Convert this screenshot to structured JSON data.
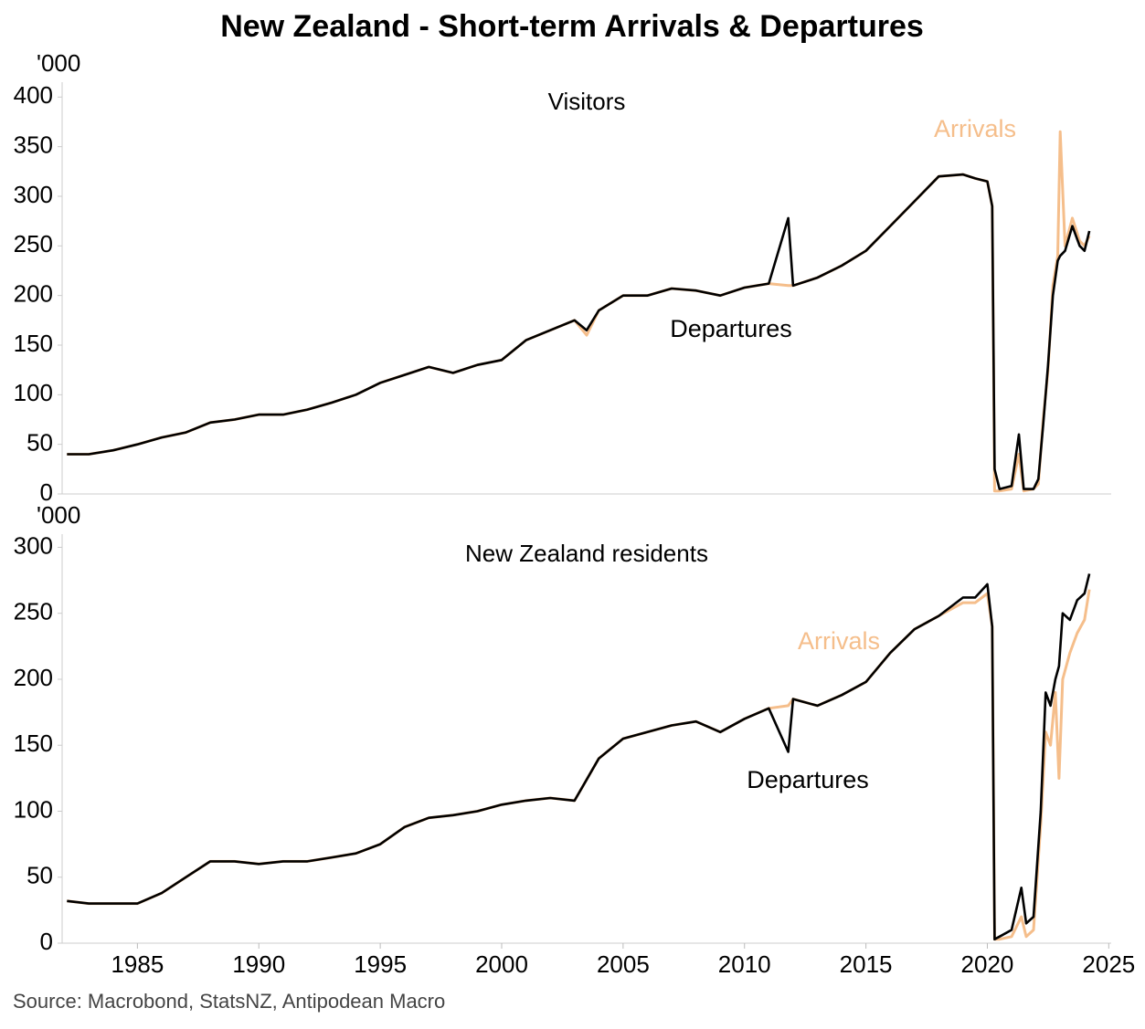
{
  "title": "New Zealand - Short-term Arrivals & Departures",
  "source": "Source: Macrobond, StatsNZ, Antipodean Macro",
  "chart_data": [
    {
      "type": "line",
      "subtitle": "Visitors",
      "y_label": "'000",
      "annotations": [
        "Arrivals",
        "Departures"
      ],
      "xlim": [
        1981.9,
        2025.1
      ],
      "ylim": [
        0,
        415
      ],
      "yticks": [
        0,
        50,
        100,
        150,
        200,
        250,
        300,
        350,
        400
      ],
      "x": [
        1982.1,
        1983,
        1984,
        1985,
        1986,
        1987,
        1988,
        1989,
        1990,
        1991,
        1992,
        1993,
        1994,
        1995,
        1996,
        1997,
        1998,
        1999,
        2000,
        2001,
        2002,
        2003,
        2003.5,
        2004,
        2005,
        2006,
        2007,
        2008,
        2009,
        2010,
        2011,
        2011.8,
        2012,
        2013,
        2014,
        2015,
        2016,
        2017,
        2018,
        2019,
        2019.5,
        2020.0,
        2020.2,
        2020.3,
        2020.5,
        2021.0,
        2021.3,
        2021.5,
        2021.9,
        2022.1,
        2022.3,
        2022.5,
        2022.7,
        2022.9,
        2023.0,
        2023.2,
        2023.5,
        2023.8,
        2024.0,
        2024.2
      ],
      "series": [
        {
          "name": "Arrivals",
          "color": "#f5be8b",
          "values": [
            40,
            40,
            44,
            50,
            57,
            62,
            72,
            75,
            80,
            80,
            85,
            92,
            100,
            112,
            120,
            128,
            122,
            130,
            135,
            155,
            165,
            175,
            160,
            185,
            200,
            200,
            207,
            205,
            200,
            208,
            212,
            210,
            210,
            218,
            230,
            245,
            270,
            295,
            320,
            322,
            318,
            315,
            290,
            3,
            3,
            5,
            40,
            3,
            5,
            10,
            75,
            125,
            210,
            240,
            365,
            250,
            278,
            255,
            250,
            260
          ]
        },
        {
          "name": "Departures",
          "color": "#000000",
          "values": [
            40,
            40,
            44,
            50,
            57,
            62,
            72,
            75,
            80,
            80,
            85,
            92,
            100,
            112,
            120,
            128,
            122,
            130,
            135,
            155,
            165,
            175,
            165,
            185,
            200,
            200,
            207,
            205,
            200,
            208,
            212,
            278,
            210,
            218,
            230,
            245,
            270,
            295,
            320,
            322,
            318,
            315,
            290,
            25,
            5,
            8,
            60,
            5,
            5,
            15,
            70,
            130,
            200,
            235,
            240,
            245,
            270,
            250,
            245,
            265
          ]
        }
      ]
    },
    {
      "type": "line",
      "subtitle": "New Zealand residents",
      "y_label": "'000",
      "annotations": [
        "Arrivals",
        "Departures"
      ],
      "xlim": [
        1981.9,
        2025.1
      ],
      "ylim": [
        0,
        310
      ],
      "yticks": [
        0,
        50,
        100,
        150,
        200,
        250,
        300
      ],
      "xticks": [
        1985,
        1990,
        1995,
        2000,
        2005,
        2010,
        2015,
        2020,
        2025
      ],
      "x": [
        1982.1,
        1983,
        1984,
        1985,
        1986,
        1987,
        1988,
        1989,
        1990,
        1991,
        1992,
        1993,
        1994,
        1995,
        1996,
        1997,
        1998,
        1999,
        2000,
        2001,
        2002,
        2003,
        2004,
        2005,
        2006,
        2007,
        2008,
        2009,
        2010,
        2011,
        2011.8,
        2012,
        2013,
        2014,
        2015,
        2016,
        2017,
        2018,
        2019,
        2019.5,
        2020.0,
        2020.2,
        2020.3,
        2020.5,
        2021.0,
        2021.4,
        2021.6,
        2021.9,
        2022.2,
        2022.4,
        2022.6,
        2022.8,
        2022.95,
        2023.1,
        2023.4,
        2023.7,
        2024.0,
        2024.2
      ],
      "series": [
        {
          "name": "Arrivals",
          "color": "#f5be8b",
          "values": [
            32,
            30,
            30,
            30,
            38,
            50,
            62,
            62,
            60,
            62,
            62,
            65,
            68,
            75,
            88,
            95,
            97,
            100,
            105,
            108,
            110,
            108,
            140,
            155,
            160,
            165,
            168,
            160,
            170,
            178,
            180,
            185,
            180,
            188,
            198,
            220,
            238,
            248,
            258,
            258,
            265,
            240,
            3,
            3,
            5,
            20,
            5,
            10,
            90,
            160,
            150,
            190,
            125,
            200,
            220,
            235,
            245,
            268
          ]
        },
        {
          "name": "Departures",
          "color": "#000000",
          "values": [
            32,
            30,
            30,
            30,
            38,
            50,
            62,
            62,
            60,
            62,
            62,
            65,
            68,
            75,
            88,
            95,
            97,
            100,
            105,
            108,
            110,
            108,
            140,
            155,
            160,
            165,
            168,
            160,
            170,
            178,
            145,
            185,
            180,
            188,
            198,
            220,
            238,
            248,
            262,
            262,
            272,
            240,
            3,
            5,
            10,
            42,
            15,
            20,
            100,
            190,
            180,
            200,
            210,
            250,
            245,
            260,
            265,
            280
          ]
        }
      ]
    }
  ]
}
